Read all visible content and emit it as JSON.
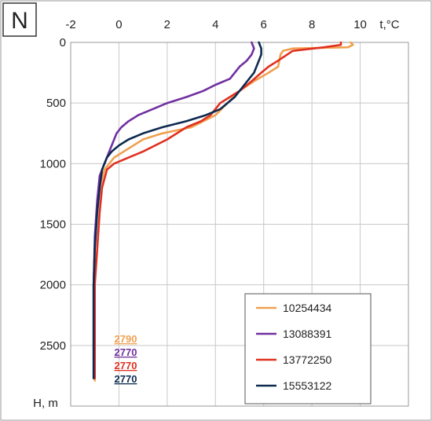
{
  "chart_data": {
    "type": "line",
    "panel_label": "N",
    "xlabel": "t,°C",
    "ylabel": "H, m",
    "xlim": [
      -2,
      12
    ],
    "ylim": [
      0,
      3000
    ],
    "y_inverted": true,
    "x_ticks": [
      "-2",
      "0",
      "2",
      "4",
      "6",
      "8",
      "10"
    ],
    "y_ticks": [
      "0",
      "500",
      "1000",
      "1500",
      "2000",
      "2500"
    ],
    "grid": true,
    "legend_position": "bottom-right",
    "series": [
      {
        "name": "10254434",
        "color": "#f0a050",
        "max_depth_label": "2790",
        "points": [
          [
            9.6,
            0
          ],
          [
            9.7,
            20
          ],
          [
            9.5,
            40
          ],
          [
            7.2,
            50
          ],
          [
            6.8,
            70
          ],
          [
            6.7,
            100
          ],
          [
            6.6,
            200
          ],
          [
            6.2,
            250
          ],
          [
            5.6,
            320
          ],
          [
            5.0,
            400
          ],
          [
            4.5,
            500
          ],
          [
            4.0,
            600
          ],
          [
            3.0,
            700
          ],
          [
            1.8,
            750
          ],
          [
            1.0,
            800
          ],
          [
            0.6,
            850
          ],
          [
            0.2,
            900
          ],
          [
            -0.2,
            950
          ],
          [
            -0.4,
            1000
          ],
          [
            -0.6,
            1050
          ],
          [
            -0.8,
            1200
          ],
          [
            -0.9,
            1400
          ],
          [
            -1.0,
            1700
          ],
          [
            -1.05,
            2000
          ],
          [
            -1.05,
            2300
          ],
          [
            -1.05,
            2600
          ],
          [
            -1.0,
            2790
          ]
        ]
      },
      {
        "name": "13088391",
        "color": "#7030a0",
        "max_depth_label": "2770",
        "points": [
          [
            5.5,
            0
          ],
          [
            5.6,
            50
          ],
          [
            5.5,
            100
          ],
          [
            5.3,
            150
          ],
          [
            5.0,
            200
          ],
          [
            4.8,
            250
          ],
          [
            4.6,
            300
          ],
          [
            4.0,
            350
          ],
          [
            3.5,
            400
          ],
          [
            2.8,
            450
          ],
          [
            2.0,
            500
          ],
          [
            1.4,
            550
          ],
          [
            0.8,
            600
          ],
          [
            0.4,
            650
          ],
          [
            0.1,
            700
          ],
          [
            -0.1,
            750
          ],
          [
            -0.2,
            800
          ],
          [
            -0.3,
            850
          ],
          [
            -0.4,
            900
          ],
          [
            -0.5,
            950
          ],
          [
            -0.6,
            1000
          ],
          [
            -0.8,
            1100
          ],
          [
            -0.9,
            1300
          ],
          [
            -1.0,
            1600
          ],
          [
            -1.05,
            2000
          ],
          [
            -1.05,
            2300
          ],
          [
            -1.05,
            2600
          ],
          [
            -1.05,
            2770
          ]
        ]
      },
      {
        "name": "13772250",
        "color": "#e03020",
        "max_depth_label": "2770",
        "points": [
          [
            9.2,
            0
          ],
          [
            9.2,
            20
          ],
          [
            8.5,
            40
          ],
          [
            7.2,
            70
          ],
          [
            6.6,
            150
          ],
          [
            6.2,
            200
          ],
          [
            5.9,
            250
          ],
          [
            5.5,
            320
          ],
          [
            5.0,
            400
          ],
          [
            4.6,
            450
          ],
          [
            4.2,
            500
          ],
          [
            3.8,
            600
          ],
          [
            3.4,
            650
          ],
          [
            2.8,
            700
          ],
          [
            2.0,
            800
          ],
          [
            1.0,
            900
          ],
          [
            0.4,
            950
          ],
          [
            -0.2,
            1000
          ],
          [
            -0.5,
            1050
          ],
          [
            -0.7,
            1200
          ],
          [
            -0.8,
            1400
          ],
          [
            -0.9,
            1700
          ],
          [
            -1.0,
            2000
          ],
          [
            -1.0,
            2300
          ],
          [
            -1.0,
            2600
          ],
          [
            -1.0,
            2770
          ]
        ]
      },
      {
        "name": "15553122",
        "color": "#0d2a50",
        "max_depth_label": "2770",
        "points": [
          [
            5.8,
            0
          ],
          [
            5.9,
            50
          ],
          [
            5.9,
            100
          ],
          [
            5.8,
            150
          ],
          [
            5.6,
            250
          ],
          [
            5.2,
            350
          ],
          [
            4.8,
            450
          ],
          [
            4.2,
            550
          ],
          [
            3.6,
            600
          ],
          [
            2.8,
            650
          ],
          [
            1.8,
            700
          ],
          [
            1.0,
            750
          ],
          [
            0.4,
            800
          ],
          [
            0.0,
            850
          ],
          [
            -0.3,
            900
          ],
          [
            -0.5,
            950
          ],
          [
            -0.7,
            1050
          ],
          [
            -0.8,
            1200
          ],
          [
            -0.9,
            1400
          ],
          [
            -1.0,
            1700
          ],
          [
            -1.05,
            2000
          ],
          [
            -1.05,
            2300
          ],
          [
            -1.05,
            2600
          ],
          [
            -1.05,
            2770
          ]
        ]
      }
    ]
  }
}
